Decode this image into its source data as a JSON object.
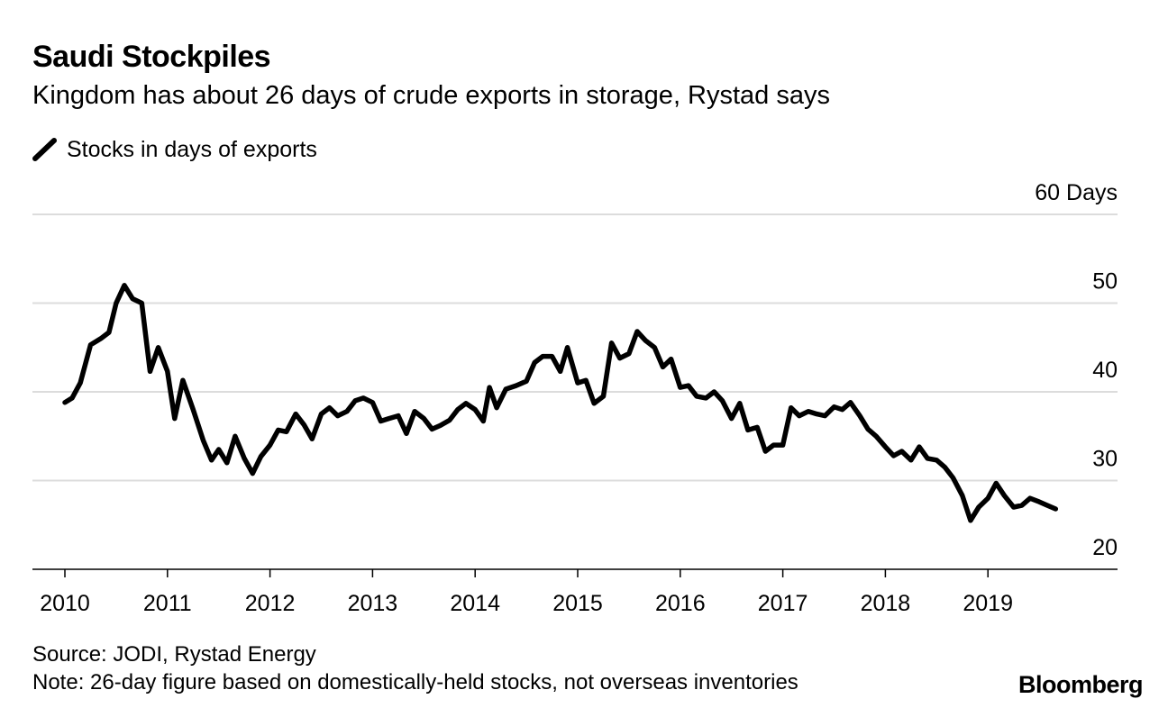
{
  "chart_data": {
    "type": "line",
    "title": "Saudi Stockpiles",
    "subtitle": "Kingdom has about 26 days of crude exports in storage, Rystad says",
    "series": [
      {
        "name": "Stocks in days of exports",
        "color": "#000000",
        "points": [
          [
            2010.0,
            38.8
          ],
          [
            2010.07,
            39.3
          ],
          [
            2010.15,
            41.0
          ],
          [
            2010.25,
            45.3
          ],
          [
            2010.35,
            46.0
          ],
          [
            2010.43,
            46.7
          ],
          [
            2010.5,
            50.0
          ],
          [
            2010.58,
            52.0
          ],
          [
            2010.66,
            50.5
          ],
          [
            2010.75,
            50.0
          ],
          [
            2010.83,
            42.3
          ],
          [
            2010.91,
            45.0
          ],
          [
            2011.0,
            42.3
          ],
          [
            2011.07,
            37.0
          ],
          [
            2011.15,
            41.3
          ],
          [
            2011.25,
            38.0
          ],
          [
            2011.35,
            34.5
          ],
          [
            2011.43,
            32.3
          ],
          [
            2011.5,
            33.5
          ],
          [
            2011.58,
            32.0
          ],
          [
            2011.66,
            35.0
          ],
          [
            2011.75,
            32.5
          ],
          [
            2011.83,
            30.8
          ],
          [
            2011.91,
            32.7
          ],
          [
            2012.0,
            34.0
          ],
          [
            2012.08,
            35.7
          ],
          [
            2012.16,
            35.5
          ],
          [
            2012.25,
            37.5
          ],
          [
            2012.33,
            36.3
          ],
          [
            2012.41,
            34.7
          ],
          [
            2012.5,
            37.5
          ],
          [
            2012.58,
            38.2
          ],
          [
            2012.66,
            37.3
          ],
          [
            2012.75,
            37.8
          ],
          [
            2012.83,
            39.0
          ],
          [
            2012.91,
            39.3
          ],
          [
            2013.0,
            38.8
          ],
          [
            2013.08,
            36.7
          ],
          [
            2013.16,
            37.0
          ],
          [
            2013.25,
            37.3
          ],
          [
            2013.33,
            35.3
          ],
          [
            2013.41,
            37.8
          ],
          [
            2013.5,
            37.0
          ],
          [
            2013.58,
            35.8
          ],
          [
            2013.66,
            36.2
          ],
          [
            2013.75,
            36.8
          ],
          [
            2013.83,
            38.0
          ],
          [
            2013.91,
            38.7
          ],
          [
            2014.0,
            38.0
          ],
          [
            2014.08,
            36.7
          ],
          [
            2014.14,
            40.5
          ],
          [
            2014.21,
            38.2
          ],
          [
            2014.3,
            40.3
          ],
          [
            2014.4,
            40.7
          ],
          [
            2014.5,
            41.2
          ],
          [
            2014.58,
            43.3
          ],
          [
            2014.66,
            44.0
          ],
          [
            2014.75,
            44.0
          ],
          [
            2014.83,
            42.3
          ],
          [
            2014.9,
            45.0
          ],
          [
            2015.0,
            41.0
          ],
          [
            2015.08,
            41.3
          ],
          [
            2015.16,
            38.7
          ],
          [
            2015.25,
            39.5
          ],
          [
            2015.33,
            45.5
          ],
          [
            2015.41,
            43.8
          ],
          [
            2015.5,
            44.3
          ],
          [
            2015.58,
            46.8
          ],
          [
            2015.66,
            45.8
          ],
          [
            2015.75,
            45.0
          ],
          [
            2015.83,
            42.8
          ],
          [
            2015.91,
            43.7
          ],
          [
            2016.0,
            40.5
          ],
          [
            2016.08,
            40.7
          ],
          [
            2016.16,
            39.5
          ],
          [
            2016.25,
            39.3
          ],
          [
            2016.33,
            40.0
          ],
          [
            2016.41,
            39.0
          ],
          [
            2016.5,
            37.0
          ],
          [
            2016.58,
            38.7
          ],
          [
            2016.66,
            35.7
          ],
          [
            2016.75,
            36.0
          ],
          [
            2016.83,
            33.3
          ],
          [
            2016.91,
            34.0
          ],
          [
            2017.0,
            34.0
          ],
          [
            2017.08,
            38.2
          ],
          [
            2017.16,
            37.3
          ],
          [
            2017.25,
            37.8
          ],
          [
            2017.33,
            37.5
          ],
          [
            2017.41,
            37.3
          ],
          [
            2017.5,
            38.3
          ],
          [
            2017.58,
            38.0
          ],
          [
            2017.66,
            38.8
          ],
          [
            2017.75,
            37.3
          ],
          [
            2017.83,
            35.8
          ],
          [
            2017.91,
            35.0
          ],
          [
            2018.0,
            33.8
          ],
          [
            2018.08,
            32.8
          ],
          [
            2018.16,
            33.3
          ],
          [
            2018.25,
            32.3
          ],
          [
            2018.33,
            33.8
          ],
          [
            2018.41,
            32.5
          ],
          [
            2018.5,
            32.3
          ],
          [
            2018.58,
            31.5
          ],
          [
            2018.66,
            30.3
          ],
          [
            2018.75,
            28.3
          ],
          [
            2018.83,
            25.5
          ],
          [
            2018.91,
            27.0
          ],
          [
            2019.0,
            28.0
          ],
          [
            2019.08,
            29.7
          ],
          [
            2019.16,
            28.3
          ],
          [
            2019.25,
            27.0
          ],
          [
            2019.33,
            27.2
          ],
          [
            2019.41,
            28.0
          ],
          [
            2019.5,
            27.6
          ],
          [
            2019.58,
            27.2
          ],
          [
            2019.66,
            26.8
          ]
        ]
      }
    ],
    "x_ticks": [
      "2010",
      "2011",
      "2012",
      "2013",
      "2014",
      "2015",
      "2016",
      "2017",
      "2018",
      "2019"
    ],
    "y_ticks": [
      {
        "value": 20,
        "label": "20"
      },
      {
        "value": 30,
        "label": "30"
      },
      {
        "value": 40,
        "label": "40"
      },
      {
        "value": 50,
        "label": "50"
      },
      {
        "value": 60,
        "label": "60 Days"
      }
    ],
    "xlim": [
      2010,
      2020
    ],
    "ylim": [
      20,
      60
    ],
    "grid": true,
    "legend": "top-left"
  },
  "footer": {
    "source": "Source: JODI, Rystad Energy",
    "note": "Note: 26-day figure based on domestically-held stocks, not overseas inventories",
    "brand": "Bloomberg"
  },
  "colors": {
    "line": "#000000",
    "grid": "#dcdcdc",
    "axis": "#000000",
    "background": "#ffffff"
  }
}
